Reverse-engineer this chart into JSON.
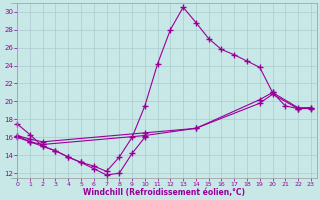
{
  "xlabel": "Windchill (Refroidissement éolien,°C)",
  "xlim": [
    -0.5,
    23.5
  ],
  "ylim": [
    11.5,
    31
  ],
  "yticks": [
    12,
    14,
    16,
    18,
    20,
    22,
    24,
    26,
    28,
    30
  ],
  "xticks": [
    0,
    1,
    2,
    3,
    4,
    5,
    6,
    7,
    8,
    9,
    10,
    11,
    12,
    13,
    14,
    15,
    16,
    17,
    18,
    19,
    20,
    21,
    22,
    23
  ],
  "bg_color": "#c8e8e8",
  "line_color": "#990099",
  "grid_color": "#aacccc",
  "lines": [
    {
      "x": [
        0,
        1,
        2,
        3,
        4,
        5,
        6,
        7,
        8,
        9,
        10,
        11,
        12,
        13,
        14,
        15,
        16,
        17,
        18,
        19,
        20,
        21,
        22,
        23
      ],
      "y": [
        17.5,
        16.3,
        15.0,
        14.5,
        13.8,
        13.2,
        12.8,
        12.2,
        13.8,
        16.0,
        19.5,
        24.2,
        28.0,
        30.5,
        28.8,
        27.0,
        25.8,
        25.2,
        24.5,
        23.8,
        21.0,
        19.5,
        19.2,
        19.3
      ]
    },
    {
      "x": [
        0,
        1,
        2,
        10,
        14,
        19,
        20,
        22,
        23
      ],
      "y": [
        16.2,
        15.8,
        15.5,
        16.5,
        17.0,
        20.2,
        21.0,
        19.3,
        19.3
      ]
    },
    {
      "x": [
        0,
        1,
        2,
        10,
        14,
        19,
        20,
        22,
        23
      ],
      "y": [
        16.2,
        15.5,
        15.2,
        16.2,
        17.0,
        19.8,
        20.8,
        19.2,
        19.2
      ]
    },
    {
      "x": [
        0,
        1,
        2,
        3,
        4,
        5,
        6,
        7,
        8,
        9,
        10
      ],
      "y": [
        16.0,
        15.5,
        15.0,
        14.5,
        13.8,
        13.2,
        12.5,
        11.8,
        12.0,
        14.2,
        16.0
      ]
    }
  ],
  "figsize": [
    3.2,
    2.0
  ],
  "dpi": 100
}
